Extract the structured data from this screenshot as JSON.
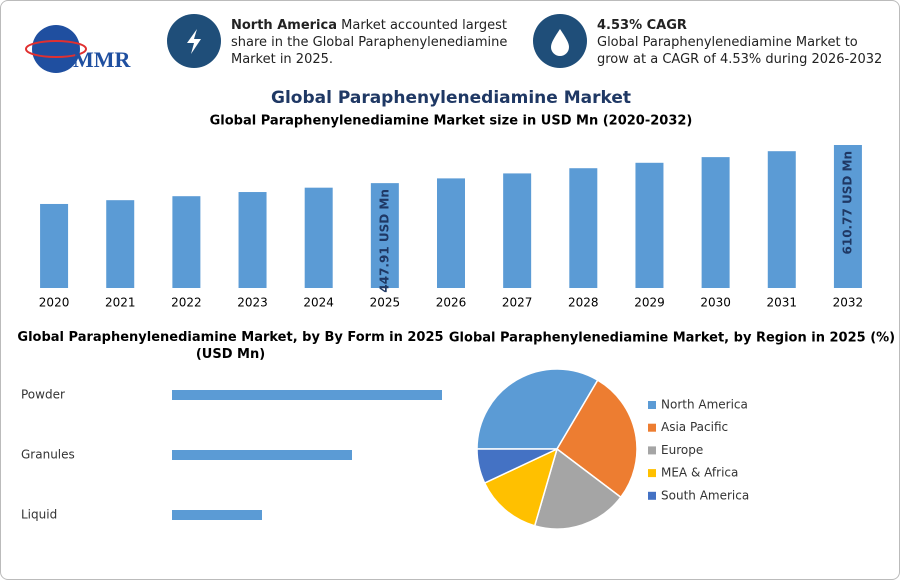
{
  "header": {
    "logo": "MMR",
    "highlights": [
      {
        "title": "North America",
        "text": "Market accounted largest share in the Global Paraphenylenediamine Market in 2025."
      },
      {
        "title": "4.53% CAGR",
        "text": "Global Paraphenylenediamine Market to grow at a CAGR of 4.53% during 2026-2032"
      }
    ]
  },
  "title": "Global Paraphenylenediamine Market",
  "chart_data": [
    {
      "type": "bar",
      "title": "Global Paraphenylenediamine Market size in USD Mn (2020-2032)",
      "categories": [
        "2020",
        "2021",
        "2022",
        "2023",
        "2024",
        "2025",
        "2026",
        "2027",
        "2028",
        "2029",
        "2030",
        "2031",
        "2032"
      ],
      "values": [
        358.9,
        375.1,
        392.1,
        409.9,
        428.5,
        447.91,
        468.2,
        489.4,
        511.6,
        534.8,
        559.0,
        584.3,
        610.77
      ],
      "value_labels": [
        null,
        null,
        null,
        null,
        null,
        "447.91 USD Mn",
        null,
        null,
        null,
        null,
        null,
        null,
        "610.77 USD Mn"
      ],
      "color": "#5b9bd5"
    },
    {
      "type": "barh",
      "title": "Global Paraphenylenediamine Market, by By Form in 2025 (USD Mn)",
      "categories": [
        "Powder",
        "Granules",
        "Liquid"
      ],
      "values": [
        60,
        40,
        20
      ],
      "color": "#5b9bd5"
    },
    {
      "type": "pie",
      "title": "Global Paraphenylenediamine Market, by Region in 2025 (%)",
      "categories": [
        "North America",
        "Asia Pacific",
        "Europe",
        "MEA & Africa",
        "South America"
      ],
      "values": [
        33.5,
        26.8,
        19.2,
        13.5,
        7.0
      ],
      "colors": [
        "#5b9bd5",
        "#ed7d31",
        "#a5a5a5",
        "#ffc000",
        "#4472c4"
      ]
    }
  ]
}
